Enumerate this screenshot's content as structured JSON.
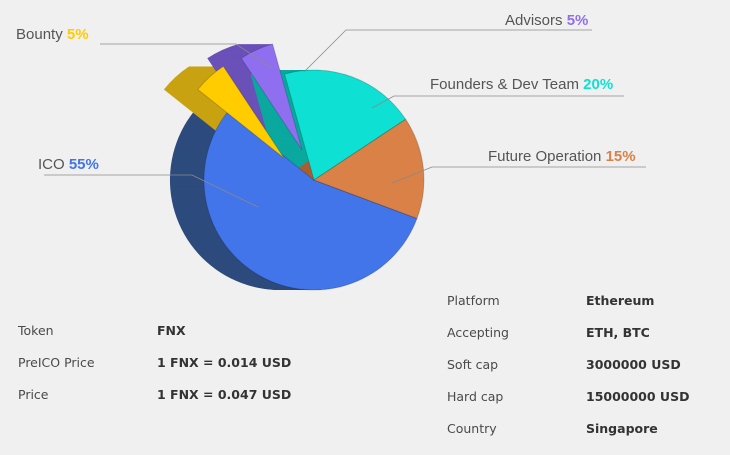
{
  "chart_data": {
    "type": "pie",
    "title": "",
    "slices": [
      {
        "label": "ICO",
        "value": 55,
        "value_text": "55%",
        "color": "#4274ea",
        "side_color": "#2d4b7d"
      },
      {
        "label": "Bounty",
        "value": 5,
        "value_text": "5%",
        "color": "#ffcc00",
        "side_color": "#c9a212"
      },
      {
        "label": "Advisors",
        "value": 5,
        "value_text": "5%",
        "color": "#8f6ff0",
        "side_color": "#6a51b8"
      },
      {
        "label": "Founders & Dev Team",
        "value": 20,
        "value_text": "20%",
        "color": "#0ee0d3",
        "side_color": "#0aa89f"
      },
      {
        "label": "Future Operation",
        "value": 15,
        "value_text": "15%",
        "color": "#d98146",
        "side_color": "#a95f30"
      }
    ]
  },
  "info_left": [
    {
      "key": "Token",
      "value": "FNX"
    },
    {
      "key": "PreICO Price",
      "value": "1 FNX = 0.014 USD"
    },
    {
      "key": "Price",
      "value": "1 FNX = 0.047 USD"
    }
  ],
  "info_right": [
    {
      "key": "Platform",
      "value": "Ethereum"
    },
    {
      "key": "Accepting",
      "value": "ETH, BTC"
    },
    {
      "key": "Soft cap",
      "value": "3000000 USD"
    },
    {
      "key": "Hard cap",
      "value": "15000000 USD"
    },
    {
      "key": "Country",
      "value": "Singapore"
    }
  ]
}
